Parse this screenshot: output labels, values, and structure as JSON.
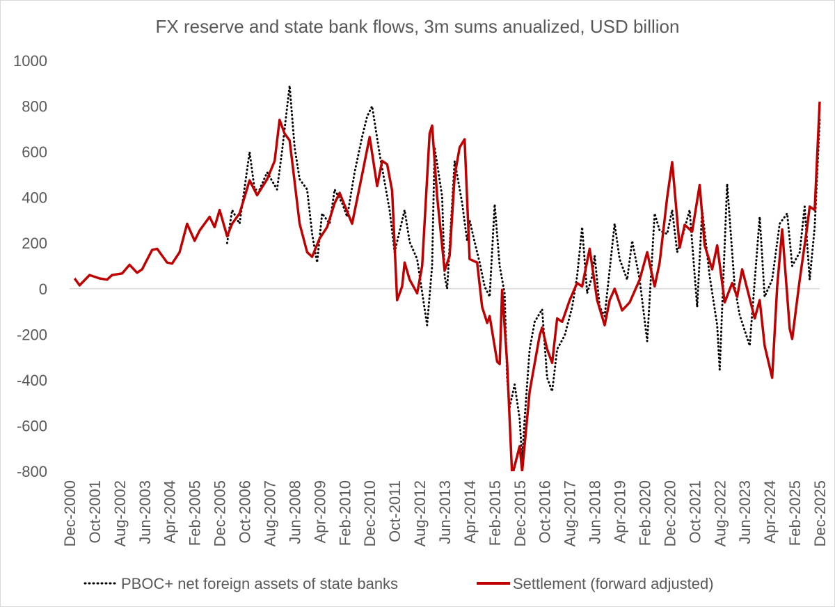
{
  "chart_data": {
    "type": "line",
    "title": "FX reserve and state bank flows, 3m sums anualized, USD billion",
    "xlabel": "",
    "ylabel": "",
    "ylim": [
      -800,
      1000
    ],
    "yticks": [
      1000,
      800,
      600,
      400,
      200,
      0,
      -200,
      -400,
      -600,
      -800
    ],
    "xlim": [
      "2000-12",
      "2025-12"
    ],
    "xtick_labels": [
      "Dec-2000",
      "Oct-2001",
      "Aug-2002",
      "Jun-2003",
      "Apr-2004",
      "Feb-2005",
      "Dec-2005",
      "Oct-2006",
      "Aug-2007",
      "Jun-2008",
      "Apr-2009",
      "Feb-2010",
      "Dec-2010",
      "Oct-2011",
      "Aug-2012",
      "Jun-2013",
      "Apr-2014",
      "Feb-2015",
      "Dec-2015",
      "Oct-2016",
      "Aug-2017",
      "Jun-2018",
      "Apr-2019",
      "Feb-2020",
      "Dec-2020",
      "Oct-2021",
      "Aug-2022",
      "Jun-2023",
      "Apr-2024",
      "Feb-2025",
      "Dec-2025"
    ],
    "grid": false,
    "legend_position": "bottom",
    "series": [
      {
        "name": "PBOC+ net foreign assets of state banks",
        "color": "#000000",
        "style": "dotted",
        "points": [
          [
            "2006-03",
            200
          ],
          [
            "2006-05",
            345
          ],
          [
            "2006-08",
            285
          ],
          [
            "2006-12",
            600
          ],
          [
            "2007-02",
            435
          ],
          [
            "2007-04",
            435
          ],
          [
            "2007-07",
            510
          ],
          [
            "2007-11",
            435
          ],
          [
            "2008-01",
            605
          ],
          [
            "2008-04",
            890
          ],
          [
            "2008-06",
            620
          ],
          [
            "2008-08",
            480
          ],
          [
            "2008-11",
            435
          ],
          [
            "2009-01",
            240
          ],
          [
            "2009-03",
            115
          ],
          [
            "2009-05",
            330
          ],
          [
            "2009-08",
            285
          ],
          [
            "2009-10",
            435
          ],
          [
            "2010-01",
            375
          ],
          [
            "2010-03",
            315
          ],
          [
            "2010-06",
            510
          ],
          [
            "2010-09",
            665
          ],
          [
            "2010-11",
            755
          ],
          [
            "2011-01",
            800
          ],
          [
            "2011-04",
            590
          ],
          [
            "2011-08",
            345
          ],
          [
            "2011-10",
            160
          ],
          [
            "2012-02",
            345
          ],
          [
            "2012-04",
            205
          ],
          [
            "2012-07",
            130
          ],
          [
            "2012-11",
            -160
          ],
          [
            "2013-01",
            100
          ],
          [
            "2013-02",
            620
          ],
          [
            "2013-05",
            405
          ],
          [
            "2013-06",
            55
          ],
          [
            "2013-07",
            0
          ],
          [
            "2013-10",
            560
          ],
          [
            "2014-01",
            375
          ],
          [
            "2014-03",
            210
          ],
          [
            "2014-04",
            300
          ],
          [
            "2014-06",
            205
          ],
          [
            "2014-08",
            115
          ],
          [
            "2014-10",
            10
          ],
          [
            "2014-12",
            -35
          ],
          [
            "2015-02",
            370
          ],
          [
            "2015-04",
            100
          ],
          [
            "2015-06",
            -20
          ],
          [
            "2015-07",
            -390
          ],
          [
            "2015-08",
            -520
          ],
          [
            "2015-10",
            -420
          ],
          [
            "2015-12",
            -570
          ],
          [
            "2016-01",
            -750
          ],
          [
            "2016-02",
            -570
          ],
          [
            "2016-04",
            -265
          ],
          [
            "2016-06",
            -145
          ],
          [
            "2016-09",
            -90
          ],
          [
            "2016-11",
            -390
          ],
          [
            "2017-01",
            -450
          ],
          [
            "2017-03",
            -265
          ],
          [
            "2017-06",
            -205
          ],
          [
            "2017-09",
            -80
          ],
          [
            "2017-11",
            55
          ],
          [
            "2018-01",
            270
          ],
          [
            "2018-03",
            -20
          ],
          [
            "2018-05",
            55
          ],
          [
            "2018-06",
            145
          ],
          [
            "2018-08",
            -80
          ],
          [
            "2018-10",
            -120
          ],
          [
            "2019-02",
            285
          ],
          [
            "2019-04",
            130
          ],
          [
            "2019-07",
            40
          ],
          [
            "2019-09",
            210
          ],
          [
            "2019-12",
            40
          ],
          [
            "2020-03",
            -230
          ],
          [
            "2020-06",
            330
          ],
          [
            "2020-08",
            255
          ],
          [
            "2020-11",
            240
          ],
          [
            "2021-01",
            345
          ],
          [
            "2021-03",
            160
          ],
          [
            "2021-05",
            225
          ],
          [
            "2021-08",
            345
          ],
          [
            "2021-11",
            -80
          ],
          [
            "2022-01",
            345
          ],
          [
            "2022-04",
            55
          ],
          [
            "2022-07",
            -160
          ],
          [
            "2022-08",
            -355
          ],
          [
            "2022-11",
            460
          ],
          [
            "2023-02",
            10
          ],
          [
            "2023-04",
            -115
          ],
          [
            "2023-08",
            -250
          ],
          [
            "2023-12",
            315
          ],
          [
            "2024-02",
            -35
          ],
          [
            "2024-05",
            40
          ],
          [
            "2024-08",
            285
          ],
          [
            "2024-11",
            330
          ],
          [
            "2025-01",
            100
          ],
          [
            "2025-04",
            160
          ],
          [
            "2025-06",
            360
          ],
          [
            "2025-08",
            40
          ],
          [
            "2025-10",
            270
          ],
          [
            "2025-12",
            740
          ]
        ]
      },
      {
        "name": "Settlement (forward adjusted)",
        "color": "#c00000",
        "style": "solid",
        "points": [
          [
            "2001-02",
            45
          ],
          [
            "2001-04",
            15
          ],
          [
            "2001-08",
            60
          ],
          [
            "2001-12",
            45
          ],
          [
            "2002-03",
            40
          ],
          [
            "2002-05",
            60
          ],
          [
            "2002-09",
            67
          ],
          [
            "2002-12",
            105
          ],
          [
            "2003-03",
            70
          ],
          [
            "2003-05",
            85
          ],
          [
            "2003-09",
            170
          ],
          [
            "2003-11",
            175
          ],
          [
            "2004-03",
            115
          ],
          [
            "2004-05",
            110
          ],
          [
            "2004-08",
            160
          ],
          [
            "2004-11",
            285
          ],
          [
            "2005-02",
            210
          ],
          [
            "2005-04",
            255
          ],
          [
            "2005-08",
            315
          ],
          [
            "2005-10",
            270
          ],
          [
            "2005-12",
            345
          ],
          [
            "2006-03",
            230
          ],
          [
            "2006-05",
            285
          ],
          [
            "2006-08",
            330
          ],
          [
            "2006-12",
            475
          ],
          [
            "2007-03",
            410
          ],
          [
            "2007-07",
            480
          ],
          [
            "2007-10",
            560
          ],
          [
            "2007-12",
            740
          ],
          [
            "2008-02",
            680
          ],
          [
            "2008-04",
            650
          ],
          [
            "2008-05",
            560
          ],
          [
            "2008-08",
            285
          ],
          [
            "2008-11",
            160
          ],
          [
            "2009-01",
            140
          ],
          [
            "2009-04",
            220
          ],
          [
            "2009-07",
            270
          ],
          [
            "2009-10",
            375
          ],
          [
            "2009-12",
            420
          ],
          [
            "2010-05",
            285
          ],
          [
            "2010-09",
            500
          ],
          [
            "2010-12",
            665
          ],
          [
            "2011-03",
            450
          ],
          [
            "2011-05",
            560
          ],
          [
            "2011-07",
            545
          ],
          [
            "2011-09",
            430
          ],
          [
            "2011-11",
            -50
          ],
          [
            "2012-01",
            10
          ],
          [
            "2012-02",
            115
          ],
          [
            "2012-04",
            40
          ],
          [
            "2012-07",
            -20
          ],
          [
            "2012-09",
            100
          ],
          [
            "2012-12",
            680
          ],
          [
            "2013-01",
            715
          ],
          [
            "2013-03",
            405
          ],
          [
            "2013-06",
            80
          ],
          [
            "2013-08",
            145
          ],
          [
            "2013-10",
            495
          ],
          [
            "2013-12",
            620
          ],
          [
            "2014-02",
            655
          ],
          [
            "2014-04",
            130
          ],
          [
            "2014-07",
            115
          ],
          [
            "2014-09",
            -80
          ],
          [
            "2014-11",
            -150
          ],
          [
            "2014-12",
            -120
          ],
          [
            "2015-03",
            -320
          ],
          [
            "2015-04",
            -330
          ],
          [
            "2015-05",
            -5
          ],
          [
            "2015-07",
            -325
          ],
          [
            "2015-09",
            -820
          ],
          [
            "2015-12",
            -690
          ],
          [
            "2016-01",
            -800
          ],
          [
            "2016-04",
            -450
          ],
          [
            "2016-08",
            -205
          ],
          [
            "2016-09",
            -170
          ],
          [
            "2016-11",
            -265
          ],
          [
            "2017-01",
            -325
          ],
          [
            "2017-03",
            -130
          ],
          [
            "2017-05",
            -145
          ],
          [
            "2017-08",
            -50
          ],
          [
            "2017-11",
            25
          ],
          [
            "2018-01",
            10
          ],
          [
            "2018-04",
            175
          ],
          [
            "2018-07",
            -50
          ],
          [
            "2018-10",
            -160
          ],
          [
            "2018-12",
            -50
          ],
          [
            "2019-02",
            0
          ],
          [
            "2019-05",
            -95
          ],
          [
            "2019-08",
            -60
          ],
          [
            "2019-12",
            40
          ],
          [
            "2020-03",
            160
          ],
          [
            "2020-06",
            10
          ],
          [
            "2020-08",
            115
          ],
          [
            "2020-11",
            400
          ],
          [
            "2021-01",
            555
          ],
          [
            "2021-04",
            180
          ],
          [
            "2021-06",
            280
          ],
          [
            "2021-09",
            250
          ],
          [
            "2021-12",
            455
          ],
          [
            "2022-02",
            190
          ],
          [
            "2022-05",
            85
          ],
          [
            "2022-07",
            190
          ],
          [
            "2022-10",
            -60
          ],
          [
            "2023-01",
            25
          ],
          [
            "2023-03",
            -35
          ],
          [
            "2023-05",
            85
          ],
          [
            "2023-07",
            0
          ],
          [
            "2023-10",
            -130
          ],
          [
            "2023-12",
            -50
          ],
          [
            "2024-02",
            -250
          ],
          [
            "2024-05",
            -390
          ],
          [
            "2024-07",
            10
          ],
          [
            "2024-09",
            260
          ],
          [
            "2024-12",
            -175
          ],
          [
            "2025-01",
            -220
          ],
          [
            "2025-04",
            40
          ],
          [
            "2025-07",
            270
          ],
          [
            "2025-08",
            360
          ],
          [
            "2025-10",
            345
          ],
          [
            "2025-12",
            820
          ]
        ]
      }
    ]
  }
}
